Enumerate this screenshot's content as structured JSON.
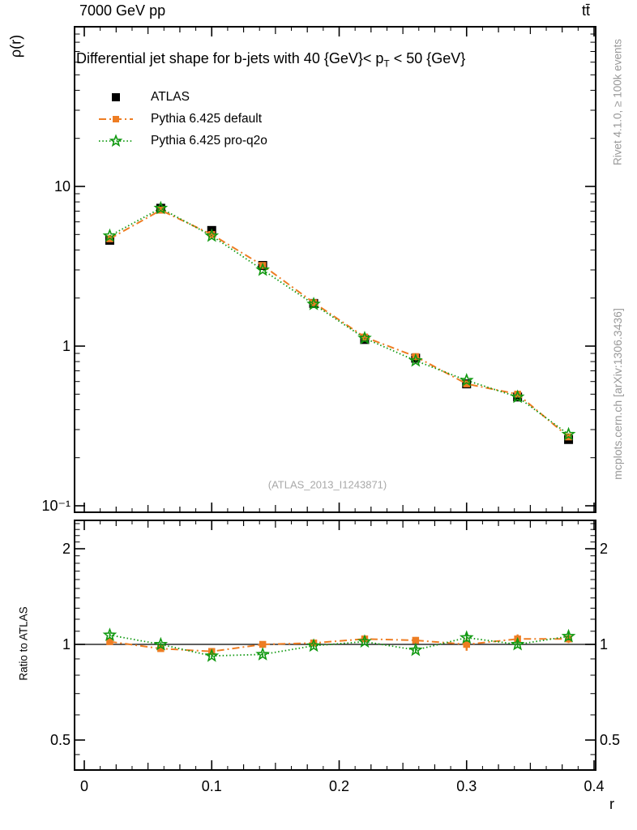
{
  "header": {
    "left": "7000 GeV pp",
    "right": "tt̄"
  },
  "title": {
    "pre": "Differential jet shape for b-jets with 40 {GeV}< p",
    "sub": "T",
    "post": " < 50 {GeV}"
  },
  "watermark": "(ATLAS_2013_I1243871)",
  "side_notes": {
    "top": "Rivet 4.1.0, ≥ 100k events",
    "bottom": "mcplots.cern.ch [arXiv:1306.3436]"
  },
  "colors": {
    "atlas": "#000000",
    "pythia_default": "#ee7d23",
    "pythia_proq2o": "#119911",
    "note_gray": "#999999",
    "watermark_gray": "#a9a9a9"
  },
  "chart_data": {
    "type": "line",
    "xlabel": "r",
    "x": [
      0.02,
      0.06,
      0.1,
      0.14,
      0.18,
      0.22,
      0.26,
      0.3,
      0.34,
      0.38
    ],
    "xlim": [
      0.0,
      0.4
    ],
    "xticks": [
      {
        "v": 0.0,
        "label": "0"
      },
      {
        "v": 0.1,
        "label": "0.1"
      },
      {
        "v": 0.2,
        "label": "0.2"
      },
      {
        "v": 0.3,
        "label": "0.3"
      },
      {
        "v": 0.4,
        "label": "0.4"
      }
    ],
    "main": {
      "ylabel": "ρ(r)",
      "yscale": "log",
      "ylim": [
        0.09,
        100
      ],
      "yticks": [
        {
          "v": 10,
          "label": "10"
        },
        {
          "v": 1,
          "label": "1"
        },
        {
          "v": 0.1,
          "label": "10⁻¹"
        }
      ]
    },
    "ratio": {
      "ylabel": "Ratio to ATLAS",
      "yscale": "log",
      "ylim": [
        0.4,
        2.46
      ],
      "yticks": [
        {
          "v": 2,
          "label": "2"
        },
        {
          "v": 1,
          "label": "1"
        },
        {
          "v": 0.5,
          "label": "0.5"
        }
      ]
    },
    "series": [
      {
        "name": "ATLAS",
        "color": "#000000",
        "line": "none",
        "marker": "square-filled",
        "values": [
          4.6,
          7.3,
          5.3,
          3.2,
          1.85,
          1.1,
          0.84,
          0.58,
          0.48,
          0.26
        ],
        "ratio": null
      },
      {
        "name": "Pythia 6.425 default",
        "color": "#ee7d23",
        "line": "dashdot",
        "marker": "square-filled",
        "values": [
          4.7,
          7.1,
          5.0,
          3.2,
          1.87,
          1.14,
          0.86,
          0.58,
          0.5,
          0.27
        ],
        "ratio": [
          1.02,
          0.97,
          0.95,
          1.0,
          1.01,
          1.04,
          1.03,
          1.0,
          1.04,
          1.04
        ],
        "ratio_err": [
          0.02,
          0.02,
          0.02,
          0.02,
          0.02,
          0.02,
          0.025,
          0.045,
          0.035,
          0.03
        ]
      },
      {
        "name": "Pythia 6.425 pro-q2o",
        "color": "#119911",
        "line": "dotted",
        "marker": "star-open",
        "values": [
          4.9,
          7.3,
          4.9,
          3.0,
          1.83,
          1.12,
          0.81,
          0.61,
          0.48,
          0.28
        ],
        "ratio": [
          1.07,
          1.0,
          0.92,
          0.93,
          0.99,
          1.02,
          0.96,
          1.05,
          1.0,
          1.06
        ],
        "ratio_err": [
          0.02,
          0.015,
          0.015,
          0.015,
          0.015,
          0.02,
          0.02,
          0.03,
          0.025,
          0.03
        ]
      }
    ]
  }
}
